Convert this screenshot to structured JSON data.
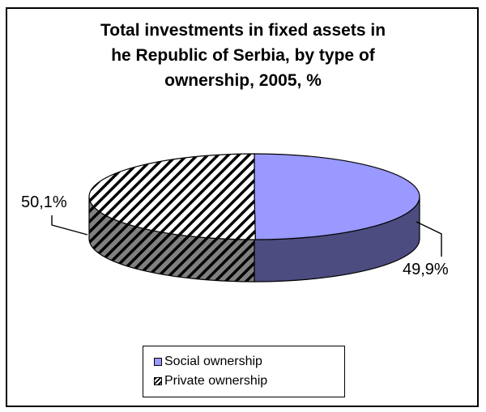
{
  "chart_data": {
    "type": "pie",
    "title": "Total investments in fixed assets in\nhe Republic of Serbia, by type of\nownership, 2005, %",
    "categories": [
      "Social ownership",
      "Private ownership"
    ],
    "values": [
      49.9,
      50.1
    ],
    "data_labels": [
      "49,9%",
      "50,1%"
    ],
    "colors": [
      "#9999ff",
      "#ffffff"
    ],
    "side_colors": [
      "#4c4c80",
      "#505050"
    ],
    "patterns": [
      "solid",
      "diagonal-hatch"
    ],
    "legend_placement": "bottom",
    "style": "3d"
  }
}
